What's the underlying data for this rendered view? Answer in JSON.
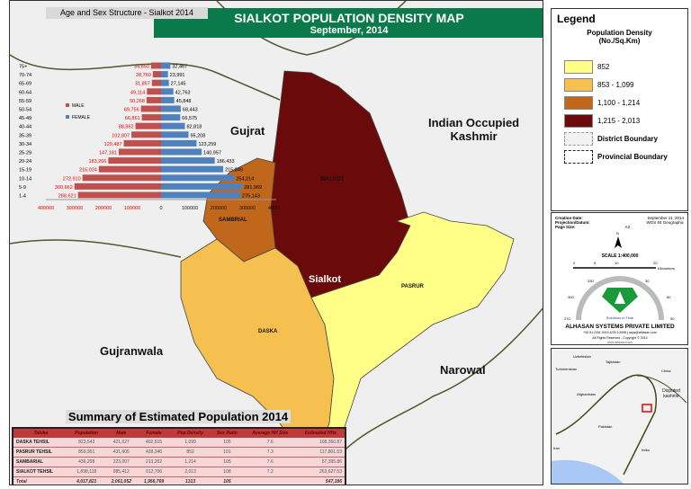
{
  "title": "SIALKOT POPULATION DENSITY MAP",
  "subtitle": "September, 2014",
  "colors": {
    "density_852": "#ffff88",
    "density_853_1099": "#f5c050",
    "density_1100_1214": "#c0671b",
    "density_1215_2013": "#6b0a0a",
    "male": "#c0504d",
    "female": "#4f81bd",
    "title_bar": "#0b7a4b"
  },
  "map_labels": {
    "gujrat": "Gujrat",
    "kashmir_1": "Indian Occupied",
    "kashmir_2": "Kashmir",
    "sialkot": "Sialkot",
    "sialkot_tehsil": "SIALKOT",
    "sambrial": "SAMBRIAL",
    "pasrur": "PASRUR",
    "daska": "DASKA",
    "gujranwala": "Gujranwala",
    "narowal": "Narowal"
  },
  "chart_data": {
    "type": "bar",
    "title": "Age and Sex Structure - Sialkot 2014",
    "categories": [
      "75+",
      "70-74",
      "65-69",
      "60-64",
      "55-59",
      "50-54",
      "45-49",
      "40-44",
      "35-39",
      "30-34",
      "25-29",
      "20-24",
      "15-19",
      "10-14",
      "5-9",
      "1-4"
    ],
    "series": [
      {
        "name": "MALE",
        "values": [
          34850,
          28760,
          31857,
          49114,
          50268,
          69756,
          66861,
          88862,
          102807,
          129487,
          147181,
          183266,
          216024,
          272910,
          300662,
          288621
        ]
      },
      {
        "name": "FEMALE",
        "values": [
          32467,
          23991,
          27145,
          42763,
          45848,
          68443,
          66575,
          82818,
          95208,
          123259,
          140957,
          186433,
          215849,
          254214,
          281969,
          275143
        ]
      }
    ],
    "xlim": [
      -400000,
      400000
    ],
    "tick_labels": [
      "400000",
      "300000",
      "200000",
      "100000",
      "0",
      "100000",
      "200000",
      "300000",
      "400000"
    ],
    "male_labels": [
      "34,850",
      "28,760",
      "31,857",
      "49,114",
      "50,268",
      "69,756",
      "66,861",
      "88,862",
      "102,807",
      "129,487",
      "147,181",
      "183,266",
      "216,024",
      "272,910",
      "300,662",
      "288,621"
    ],
    "female_labels": [
      "32,467",
      "23,991",
      "27,145",
      "42,763",
      "45,848",
      "68,443",
      "66,575",
      "82,818",
      "95,208",
      "123,259",
      "140,957",
      "186,433",
      "215,849",
      "254,214",
      "281,969",
      "275,143"
    ],
    "legend_placement": "left"
  },
  "summary": {
    "title": "Summary of Estimated Population 2014",
    "headers": [
      "Taluka",
      "Population",
      "Male",
      "Female",
      "Pop Density",
      "Sex Ratio",
      "Average HH Size",
      "Estimated HHs"
    ],
    "rows": [
      [
        "DASKA TEHSIL",
        "823,543",
        "421,027",
        "402,515",
        "1,099",
        "105",
        "7.6",
        "108,360.87"
      ],
      [
        "PASRUR TEHSIL",
        "859,951",
        "431,605",
        "428,346",
        "852",
        "101",
        "7.3",
        "117,801.53"
      ],
      [
        "SAMBARIAL",
        "436,208",
        "223,007",
        "213,202",
        "1,214",
        "105",
        "7.6",
        "57,395.86"
      ],
      [
        "SIALKOT TEHSIL",
        "1,898,118",
        "985,412",
        "912,706",
        "2,013",
        "108",
        "7.2",
        "263,627.53"
      ],
      [
        "Total",
        "4,017,821",
        "2,061,052",
        "1,956,769",
        "1313",
        "105",
        "",
        "547,186"
      ]
    ]
  },
  "legend": {
    "title": "Legend",
    "heading": "Population Density",
    "unit": "(No./Sq.Km)",
    "items": [
      "852",
      "853 - 1,099",
      "1,100 - 1,214",
      "1,215 - 2,013"
    ],
    "district": "District Boundary",
    "provincial": "Provincial Boundary"
  },
  "info": {
    "creation_label": "Creation Date:",
    "creation": "September 11, 2014",
    "projection_label": "Projection/Datum:",
    "projection": "WGS 84 Geographic",
    "page_label": "Page Size:",
    "page": "A3",
    "north": "N",
    "scale": "SCALE 1:400,000",
    "scale_ticks": [
      "0",
      "5",
      "10",
      "",
      "20"
    ],
    "scale_unit": "Kilometers",
    "compass": [
      "330",
      "30",
      "300",
      "60",
      "270",
      "90"
    ],
    "tagline": "Solutions in Time",
    "company": "ALHASAN SYSTEMS PRIVATE LIMITED",
    "contact": "+92.51.2261.9419.4/25.3.2698 | asps@alhasan.com",
    "rights": "All Rights Reserved - Copyright © 2014",
    "web": "www.alhasan.com"
  },
  "inset": {
    "labels": [
      "Uzbekistan",
      "Tajikistan",
      "Turkmenistan",
      "China",
      "Afghanistan",
      "Disputed kashmir",
      "Pakistan",
      "Iran",
      "India"
    ]
  }
}
